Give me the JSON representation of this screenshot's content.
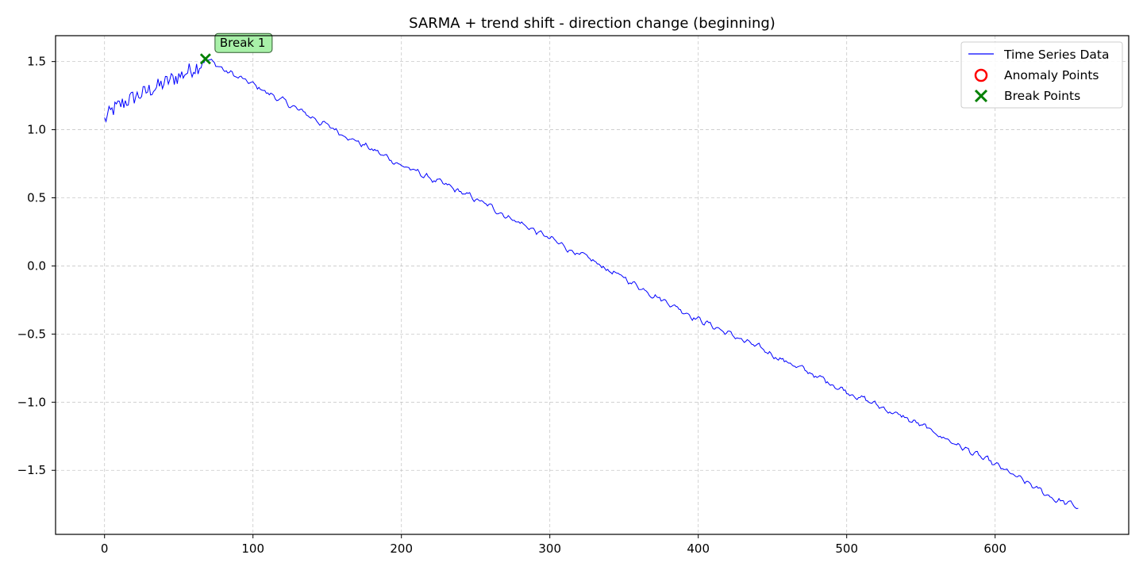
{
  "chart_data": {
    "type": "line",
    "title": "SARMA + trend shift - direction change (beginning)",
    "xlabel": "",
    "ylabel": "",
    "xlim": [
      -33,
      690
    ],
    "ylim": [
      -1.97,
      1.69
    ],
    "x_ticks": [
      0,
      100,
      200,
      300,
      400,
      500,
      600
    ],
    "y_ticks": [
      -1.5,
      -1.0,
      -0.5,
      0.0,
      0.5,
      1.0,
      1.5
    ],
    "x_tick_labels": [
      "0",
      "100",
      "200",
      "300",
      "400",
      "500",
      "600"
    ],
    "y_tick_labels": [
      "−1.5",
      "−1.0",
      "−0.5",
      "0.0",
      "0.5",
      "1.0",
      "1.5"
    ],
    "grid": true,
    "legend_position": "top-right",
    "legend": [
      {
        "label": "Time Series Data",
        "marker": "line",
        "color": "#0000ff"
      },
      {
        "label": "Anomaly Points",
        "marker": "circle",
        "color": "#ff0000"
      },
      {
        "label": "Break Points",
        "marker": "x",
        "color": "#008000"
      }
    ],
    "series": [
      {
        "name": "Time Series Data",
        "color": "#0000ff",
        "knots": [
          [
            0,
            1.07
          ],
          [
            5,
            1.14
          ],
          [
            10,
            1.18
          ],
          [
            15,
            1.21
          ],
          [
            20,
            1.24
          ],
          [
            25,
            1.26
          ],
          [
            30,
            1.29
          ],
          [
            35,
            1.31
          ],
          [
            40,
            1.34
          ],
          [
            45,
            1.37
          ],
          [
            50,
            1.39
          ],
          [
            55,
            1.42
          ],
          [
            60,
            1.45
          ],
          [
            65,
            1.48
          ],
          [
            68,
            1.52
          ],
          [
            75,
            1.48
          ],
          [
            80,
            1.44
          ],
          [
            100,
            1.33
          ],
          [
            150,
            1.03
          ],
          [
            200,
            0.74
          ],
          [
            250,
            0.49
          ],
          [
            300,
            0.2
          ],
          [
            350,
            -0.09
          ],
          [
            400,
            -0.39
          ],
          [
            450,
            -0.65
          ],
          [
            500,
            -0.92
          ],
          [
            550,
            -1.17
          ],
          [
            600,
            -1.46
          ],
          [
            640,
            -1.71
          ],
          [
            656,
            -1.77
          ]
        ],
        "noise": {
          "early_end_x": 65,
          "early_amplitude": 0.06,
          "late_amplitude": 0.015
        }
      }
    ],
    "anomaly_points": [],
    "break_points": [
      {
        "x": 68,
        "y": 1.52,
        "label": "Break 1"
      }
    ]
  }
}
